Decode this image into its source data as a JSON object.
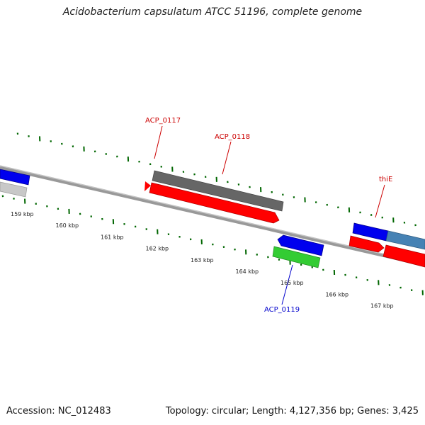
{
  "header": {
    "title": "Acidobacterium capsulatum ATCC 51196, complete genome"
  },
  "footer": {
    "accession": "Accession: NC_012483",
    "summary": "Topology: circular; Length: 4,127,356 bp; Genes: 3,425"
  },
  "colors": {
    "forward_cds": "#ff0000",
    "reverse_cds": "#0000ee",
    "gray_feature": "#666666",
    "light_gray_feature": "#c8c8c8",
    "green_feature": "#33cc33",
    "steel_blue_feature": "#4682b4",
    "backbone": "#808080",
    "ticks": "#006600",
    "forward_label": "#cc0000",
    "reverse_label": "#0000cc"
  },
  "scale_labels": [
    "159 kbp",
    "160 kbp",
    "161 kbp",
    "162 kbp",
    "163 kbp",
    "164 kbp",
    "165 kbp",
    "166 kbp",
    "167 kbp"
  ],
  "gene_labels": {
    "acp_0117": "ACP_0117",
    "acp_0118": "ACP_0118",
    "thie": "thiE",
    "acp_0119": "ACP_0119"
  }
}
